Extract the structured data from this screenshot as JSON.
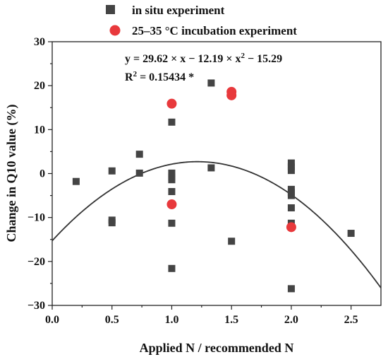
{
  "chart_data": {
    "type": "scatter",
    "xlabel": "Applied N / recommended N",
    "ylabel": "Change in Q10 value (%)",
    "xlim": [
      0,
      2.75
    ],
    "ylim": [
      -30,
      30
    ],
    "xticks": [
      0.0,
      0.5,
      1.0,
      1.5,
      2.0,
      2.5
    ],
    "xtick_labels": [
      "0.0",
      "0.5",
      "1.0",
      "1.5",
      "2.0",
      "2.5"
    ],
    "yticks": [
      -30,
      -20,
      -10,
      0,
      10,
      20,
      30
    ],
    "ytick_labels": [
      "−30",
      "−20",
      "−10",
      "0",
      "10",
      "20",
      "30"
    ],
    "legend_position": "top-left",
    "grid": false,
    "series": [
      {
        "name": "in situ experiment",
        "marker": "square",
        "color": "#444444",
        "points": [
          [
            0.2,
            -1.8
          ],
          [
            0.5,
            0.6
          ],
          [
            0.5,
            -10.6
          ],
          [
            0.5,
            -11.2
          ],
          [
            0.73,
            4.4
          ],
          [
            0.73,
            0.1
          ],
          [
            1.0,
            11.7
          ],
          [
            1.0,
            0.1
          ],
          [
            1.0,
            -0.8
          ],
          [
            1.0,
            -1.4
          ],
          [
            1.0,
            -4.1
          ],
          [
            1.0,
            -11.3
          ],
          [
            1.0,
            -21.6
          ],
          [
            1.33,
            20.6
          ],
          [
            1.33,
            1.3
          ],
          [
            1.5,
            -15.4
          ],
          [
            2.0,
            2.4
          ],
          [
            2.0,
            1.5
          ],
          [
            2.0,
            0.7
          ],
          [
            2.0,
            -3.6
          ],
          [
            2.0,
            -4.3
          ],
          [
            2.0,
            -5.0
          ],
          [
            2.0,
            -7.8
          ],
          [
            2.0,
            -11.3
          ],
          [
            2.0,
            -26.2
          ],
          [
            2.5,
            -13.6
          ]
        ]
      },
      {
        "name": "25–35 °C incubation experiment",
        "marker": "circle",
        "color": "#e8393c",
        "points": [
          [
            1.0,
            15.9
          ],
          [
            1.0,
            -7.0
          ],
          [
            1.5,
            18.6
          ],
          [
            1.5,
            17.8
          ],
          [
            2.0,
            -12.2
          ]
        ]
      }
    ],
    "fit": {
      "coefficients": {
        "a": -12.19,
        "b": 29.62,
        "c": -15.29
      },
      "color": "#333333"
    },
    "annotations": {
      "equation": {
        "prefix": "y =  29.62 × x − 12.19 × x",
        "sup": "2",
        "suffix": " − 15.29"
      },
      "r2": {
        "label": "R",
        "sup": "2",
        "value": " = 0.15434 *"
      }
    }
  }
}
